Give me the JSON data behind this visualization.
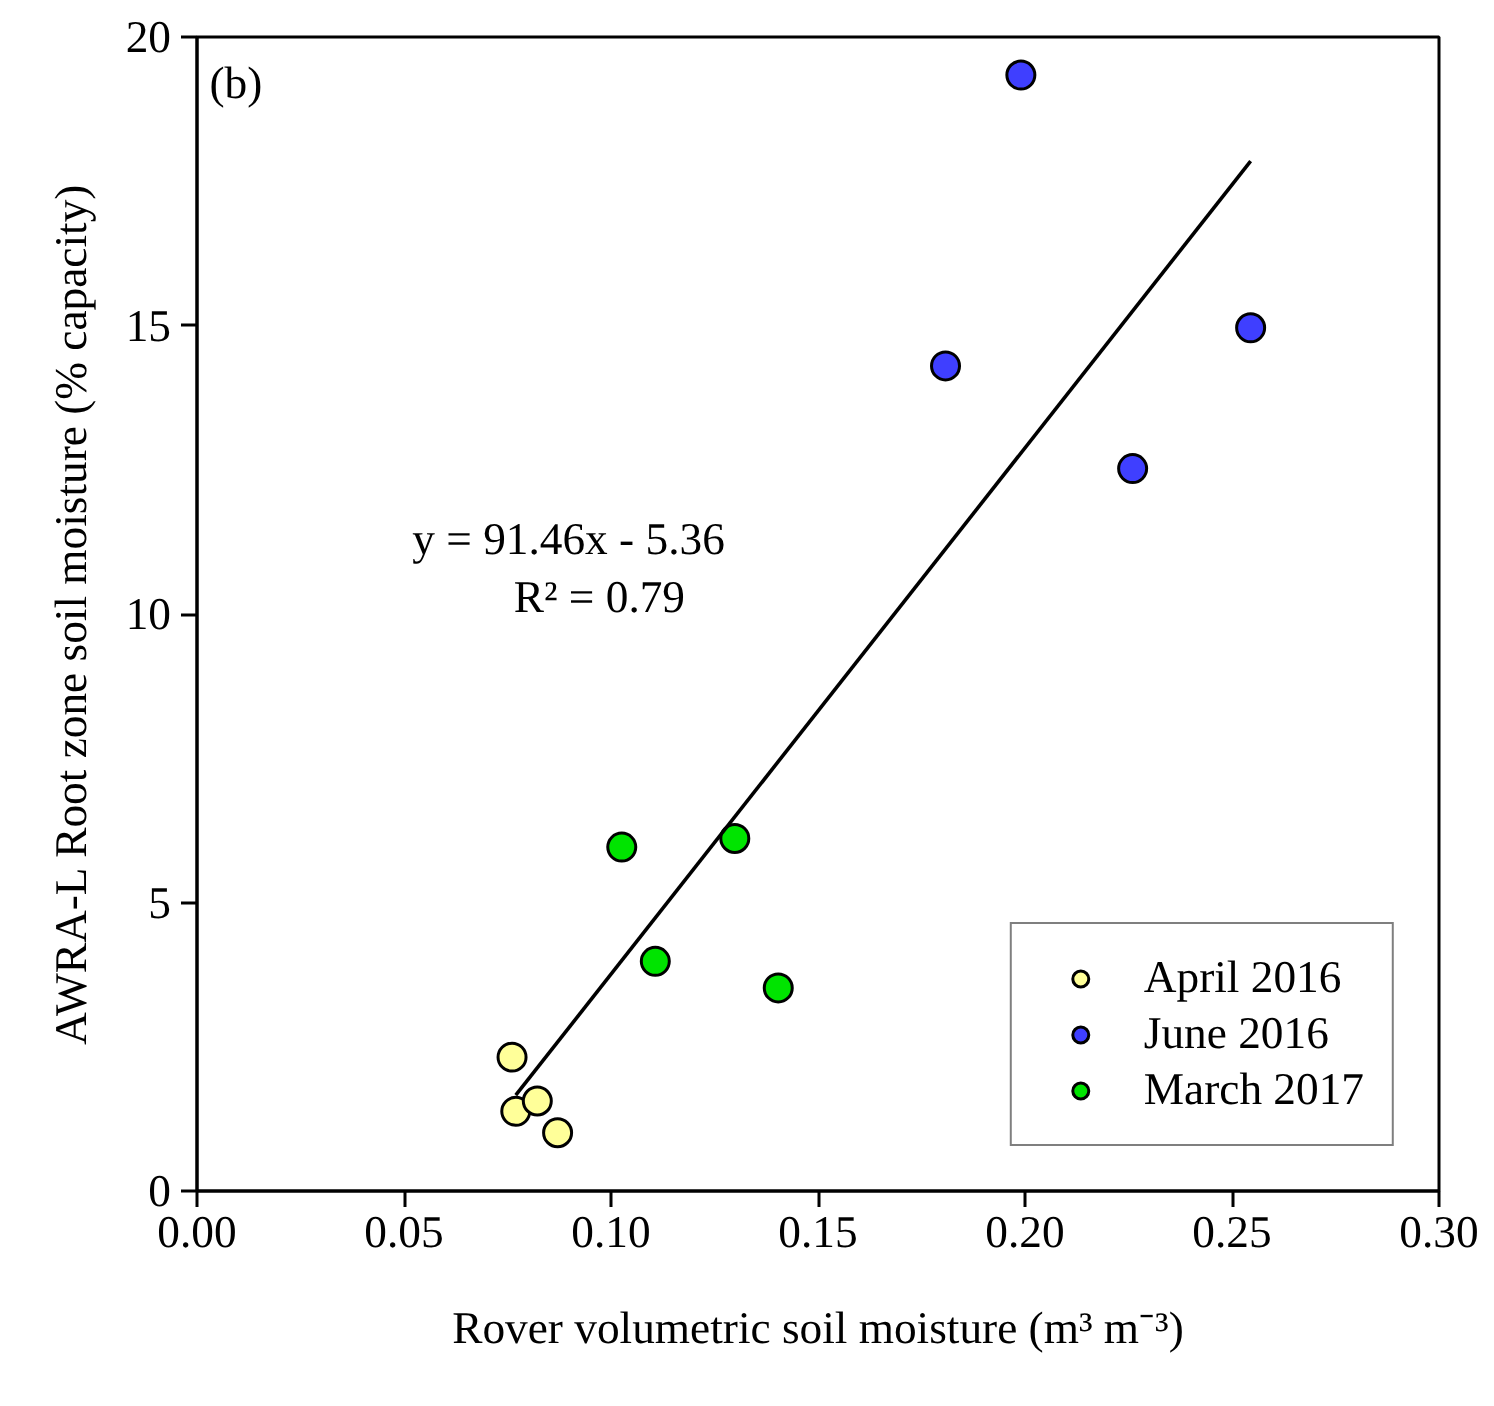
{
  "chart_data": {
    "type": "scatter",
    "xlabel": "Rover volumetric soil moisture (m³ m⁻³)",
    "ylabel": "AWRA-L Root zone soil moisture (% capacity)",
    "xlim": [
      0,
      0.3
    ],
    "ylim": [
      0,
      20
    ],
    "xticks": [
      {
        "value": 0,
        "label": "0.00"
      },
      {
        "value": 0.05,
        "label": "0.05"
      },
      {
        "value": 0.1,
        "label": "0.10"
      },
      {
        "value": 0.15,
        "label": "0.15"
      },
      {
        "value": 0.2,
        "label": "0.20"
      },
      {
        "value": 0.25,
        "label": "0.25"
      },
      {
        "value": 0.3,
        "label": "0.30"
      }
    ],
    "yticks": [
      0,
      5,
      10,
      15,
      20
    ],
    "grid": false,
    "legend": "bottom right",
    "annotations": [
      "(b)",
      "y = 91.46x - 5.36",
      "R² = 0.79"
    ],
    "series": [
      {
        "name": "April 2016",
        "color": "#ffff99",
        "marker": "circle",
        "x": [
          0.0761,
          0.077,
          0.0822,
          0.0871
        ],
        "values": [
          2.32,
          1.38,
          1.56,
          1.01
        ]
      },
      {
        "name": "June 2016",
        "color": "#3f3fff",
        "marker": "circle",
        "x": [
          0.199,
          0.1808,
          0.226,
          0.2545
        ],
        "values": [
          19.34,
          14.3,
          12.52,
          14.96
        ]
      },
      {
        "name": "March 2017",
        "color": "#00e400",
        "marker": "circle",
        "x": [
          0.1026,
          0.1107,
          0.1299,
          0.1404
        ],
        "values": [
          5.96,
          3.98,
          6.11,
          3.52
        ]
      },
      {
        "type": "line",
        "color": "#000000",
        "x": [
          0.077,
          0.2545
        ],
        "values": [
          1.66,
          17.85
        ],
        "line_style": "solid"
      }
    ]
  }
}
